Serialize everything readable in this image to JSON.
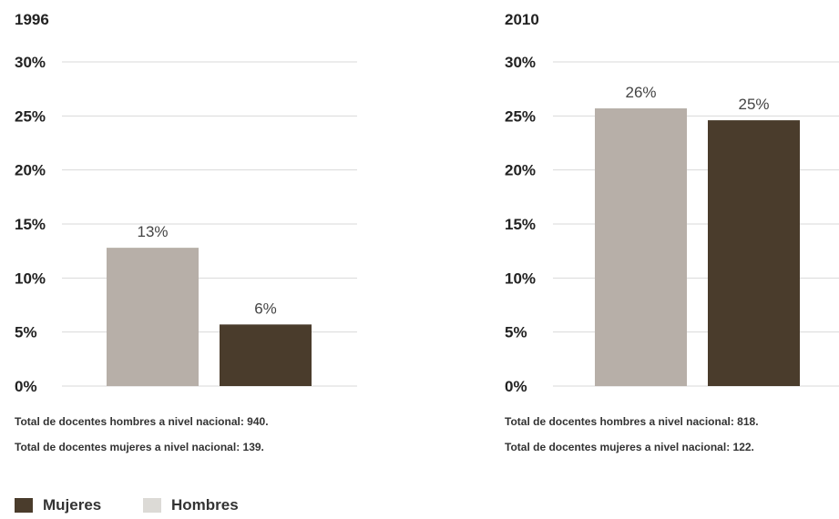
{
  "colors": {
    "mujeres": "#4a3c2c",
    "hombres": "#b7afa8",
    "legend_hombres": "#dcdad6"
  },
  "legend": [
    {
      "label": "Mujeres",
      "color": "#4a3c2c"
    },
    {
      "label": "Hombres",
      "color": "#dcdad6"
    }
  ],
  "chart_data": [
    {
      "type": "bar",
      "title": "1996",
      "categories": [
        "Hombres",
        "Mujeres"
      ],
      "values": [
        12.8,
        5.7
      ],
      "value_labels": [
        "13%",
        "6%"
      ],
      "ylim": [
        0,
        30
      ],
      "yticks": [
        "0%",
        "5%",
        "10%",
        "15%",
        "20%",
        "25%",
        "30%"
      ],
      "grid": true,
      "notes": [
        "Total de docentes hombres a nivel nacional: 940.",
        "Total de docentes mujeres a nivel nacional: 139."
      ]
    },
    {
      "type": "bar",
      "title": "2010",
      "categories": [
        "Hombres",
        "Mujeres"
      ],
      "values": [
        25.7,
        24.6
      ],
      "value_labels": [
        "26%",
        "25%"
      ],
      "ylim": [
        0,
        30
      ],
      "yticks": [
        "0%",
        "5%",
        "10%",
        "15%",
        "20%",
        "25%",
        "30%"
      ],
      "grid": true,
      "notes": [
        "Total de docentes hombres a nivel nacional: 818.",
        "Total de docentes mujeres a nivel nacional: 122."
      ]
    }
  ]
}
